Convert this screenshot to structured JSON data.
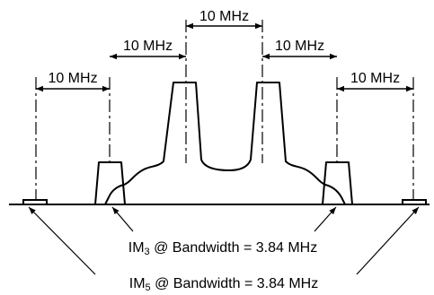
{
  "spacing_labels": {
    "top": "10 MHz",
    "inner_left": "10 MHz",
    "inner_right": "10 MHz",
    "outer_left": "10 MHz",
    "outer_right": "10 MHz"
  },
  "annotations": {
    "im3": {
      "prefix": "IM",
      "order": "3",
      "suffix": " @ Bandwidth = 3.84 MHz"
    },
    "im5": {
      "prefix": "IM",
      "order": "5",
      "suffix": " @ Bandwidth = 3.84 MHz"
    }
  },
  "colors": {
    "line": "#000000",
    "background": "#ffffff"
  }
}
